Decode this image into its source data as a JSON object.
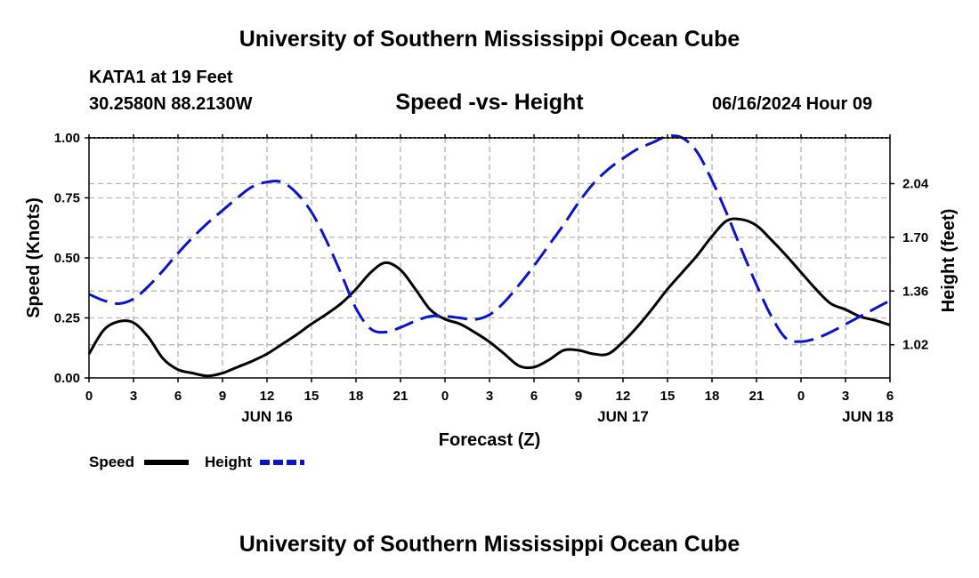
{
  "header": {
    "title": "University of Southern Mississippi Ocean Cube",
    "station": "KATA1 at 19 Feet",
    "coords": "30.2580N  88.2130W",
    "subtitle": "Speed -vs- Height",
    "datetime": "06/16/2024 Hour 09"
  },
  "footer": {
    "title": "University of Southern Mississippi Ocean Cube"
  },
  "chart_data": {
    "type": "line",
    "title": "Speed -vs- Height",
    "xlabel": "Forecast (Z)",
    "ylabel": "Speed (Knots)",
    "y2label": "Height (feet)",
    "x_range": [
      0,
      54
    ],
    "x_ticks": [
      0,
      3,
      6,
      9,
      12,
      15,
      18,
      21,
      24,
      27,
      30,
      33,
      36,
      39,
      42,
      45,
      48,
      51,
      54
    ],
    "x_tick_labels": [
      "0",
      "3",
      "6",
      "9",
      "12",
      "15",
      "18",
      "21",
      "0",
      "3",
      "6",
      "9",
      "12",
      "15",
      "18",
      "21",
      "0",
      "3",
      "6"
    ],
    "day_labels": [
      {
        "x": 12,
        "label": "JUN 16"
      },
      {
        "x": 36,
        "label": "JUN 17"
      },
      {
        "x": 52.5,
        "label": "JUN 18"
      }
    ],
    "ylim": [
      0,
      1.0
    ],
    "y_ticks": [
      0,
      0.25,
      0.5,
      0.75,
      1.0
    ],
    "y_tick_labels": [
      "0.00",
      "0.25",
      "0.50",
      "0.75",
      "1.00"
    ],
    "y2lim": [
      0.81,
      2.33
    ],
    "y2_ticks": [
      1.02,
      1.36,
      1.7,
      2.04
    ],
    "y2_tick_labels": [
      "1.02",
      "1.36",
      "1.70",
      "2.04"
    ],
    "grid": true,
    "series": [
      {
        "name": "Speed",
        "axis": "left",
        "color": "#000000",
        "style": "solid",
        "x": [
          0,
          1,
          2,
          3,
          4,
          5,
          6,
          7,
          8,
          9,
          10,
          11,
          12,
          13,
          14,
          15,
          16,
          17,
          18,
          19,
          20,
          21,
          22,
          23,
          24,
          25,
          26,
          27,
          28,
          29,
          30,
          31,
          32,
          33,
          34,
          35,
          36,
          37,
          38,
          39,
          40,
          41,
          42,
          43,
          44,
          45,
          46,
          47,
          48,
          49,
          50,
          51,
          52,
          53,
          54
        ],
        "values": [
          0.1,
          0.2,
          0.235,
          0.23,
          0.17,
          0.08,
          0.035,
          0.02,
          0.008,
          0.02,
          0.045,
          0.07,
          0.1,
          0.14,
          0.18,
          0.225,
          0.265,
          0.31,
          0.37,
          0.44,
          0.48,
          0.45,
          0.37,
          0.285,
          0.245,
          0.225,
          0.19,
          0.15,
          0.1,
          0.05,
          0.045,
          0.075,
          0.115,
          0.115,
          0.1,
          0.1,
          0.15,
          0.215,
          0.29,
          0.37,
          0.44,
          0.51,
          0.59,
          0.655,
          0.66,
          0.635,
          0.575,
          0.51,
          0.44,
          0.37,
          0.31,
          0.285,
          0.255,
          0.24,
          0.22
        ]
      },
      {
        "name": "Height",
        "axis": "right",
        "color": "#0a14c8",
        "style": "dashed",
        "x": [
          0,
          1,
          2,
          3,
          4,
          5,
          6,
          7,
          8,
          9,
          10,
          11,
          12,
          13,
          14,
          15,
          16,
          17,
          18,
          19,
          20,
          21,
          22,
          23,
          24,
          25,
          26,
          27,
          28,
          29,
          30,
          31,
          32,
          33,
          34,
          35,
          36,
          37,
          38,
          39,
          40,
          41,
          42,
          43,
          44,
          45,
          46,
          47,
          48,
          49,
          50,
          51,
          52,
          53,
          54
        ],
        "values": [
          1.34,
          1.3,
          1.28,
          1.31,
          1.39,
          1.49,
          1.6,
          1.7,
          1.79,
          1.87,
          1.95,
          2.02,
          2.05,
          2.05,
          1.98,
          1.86,
          1.68,
          1.47,
          1.25,
          1.12,
          1.1,
          1.13,
          1.17,
          1.2,
          1.2,
          1.19,
          1.18,
          1.21,
          1.29,
          1.4,
          1.52,
          1.65,
          1.78,
          1.92,
          2.04,
          2.13,
          2.2,
          2.26,
          2.3,
          2.34,
          2.33,
          2.24,
          2.06,
          1.85,
          1.62,
          1.4,
          1.2,
          1.06,
          1.04,
          1.06,
          1.1,
          1.15,
          1.2,
          1.25,
          1.3
        ]
      }
    ],
    "legend": [
      {
        "label": "Speed",
        "color": "#000000",
        "style": "solid"
      },
      {
        "label": "Height",
        "color": "#0a14c8",
        "style": "dashed"
      }
    ],
    "legend_position": "bottom-left"
  }
}
